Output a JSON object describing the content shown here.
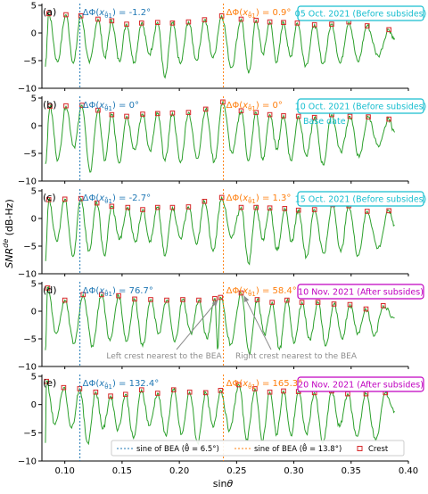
{
  "figure": {
    "ylabel": "SNR^de (dB-Hz)",
    "xlabel": "sinθ",
    "colors": {
      "signal": "#2ca02c",
      "bea1": "#1f77b4",
      "bea2": "#ff7f0e",
      "crest": "#d62728",
      "teal_box": "#17becf",
      "magenta_box": "#c000c0",
      "grey": "#8c8c8c"
    },
    "legend": [
      {
        "label": "sine of BEA (θ̂ = 6.5°)",
        "type": "dashed-line",
        "color": "#1f77b4"
      },
      {
        "label": "sine of BEA (θ̂ = 13.8°)",
        "type": "dashed-line",
        "color": "#ff7f0e"
      },
      {
        "label": "Crest",
        "type": "square-marker",
        "color": "#d62728"
      }
    ],
    "arrows": {
      "left": "Left crest nearest to the BEA",
      "right": "Right crest nearest to the BEA"
    }
  },
  "chart_data": [
    {
      "type": "line",
      "panel": "(a)",
      "title": "05 Oct. 2021 (Before subsides)",
      "box_color": "teal",
      "delta1": "ΔΦ(x_θ̂1) = -1.2°",
      "delta2": "ΔΦ(x_θ̂1) = 0.9°",
      "xlim": [
        0.08,
        0.4
      ],
      "ylim": [
        -10,
        5
      ],
      "yticks": [
        -10,
        -5,
        0,
        5
      ],
      "vlines": [
        0.1132,
        0.2385
      ],
      "crests": [
        [
          0.086,
          3.5
        ],
        [
          0.101,
          3.3
        ],
        [
          0.114,
          3.1
        ],
        [
          0.129,
          2.5
        ],
        [
          0.141,
          2.2
        ],
        [
          0.154,
          1.6
        ],
        [
          0.167,
          1.8
        ],
        [
          0.181,
          1.9
        ],
        [
          0.194,
          1.8
        ],
        [
          0.208,
          2.0
        ],
        [
          0.222,
          2.4
        ],
        [
          0.237,
          3.1
        ],
        [
          0.254,
          2.5
        ],
        [
          0.267,
          2.3
        ],
        [
          0.279,
          2.0
        ],
        [
          0.291,
          1.9
        ],
        [
          0.303,
          1.8
        ],
        [
          0.318,
          1.5
        ],
        [
          0.333,
          1.6
        ],
        [
          0.348,
          2.0
        ],
        [
          0.364,
          1.3
        ],
        [
          0.383,
          0.6
        ]
      ]
    },
    {
      "type": "line",
      "panel": "(b)",
      "title": "10 Oct. 2021 (Before subsides)",
      "title2": "Base date",
      "box_color": "teal",
      "delta1": "ΔΦ(x_θ̂1) = 0°",
      "delta2": "ΔΦ(x_θ̂1) = 0°",
      "xlim": [
        0.08,
        0.4
      ],
      "ylim": [
        -10,
        5
      ],
      "yticks": [
        -10,
        -5,
        0,
        5
      ],
      "vlines": [
        0.1132,
        0.2385
      ],
      "crests": [
        [
          0.087,
          3.5
        ],
        [
          0.101,
          3.6
        ],
        [
          0.115,
          3.7
        ],
        [
          0.129,
          2.8
        ],
        [
          0.141,
          2.0
        ],
        [
          0.154,
          1.7
        ],
        [
          0.168,
          2.1
        ],
        [
          0.181,
          2.2
        ],
        [
          0.194,
          2.3
        ],
        [
          0.208,
          2.4
        ],
        [
          0.223,
          3.0
        ],
        [
          0.238,
          4.3
        ],
        [
          0.254,
          2.7
        ],
        [
          0.267,
          2.4
        ],
        [
          0.279,
          2.0
        ],
        [
          0.291,
          1.8
        ],
        [
          0.304,
          1.7
        ],
        [
          0.318,
          1.5
        ],
        [
          0.333,
          2.0
        ],
        [
          0.349,
          1.7
        ],
        [
          0.365,
          1.6
        ],
        [
          0.383,
          1.2
        ]
      ]
    },
    {
      "type": "line",
      "panel": "(c)",
      "title": "15 Oct. 2021 (Before subsides)",
      "box_color": "teal",
      "delta1": "ΔΦ(x_θ̂1) = -2.7°",
      "delta2": "ΔΦ(x_θ̂1) = 1.3°",
      "xlim": [
        0.08,
        0.4
      ],
      "ylim": [
        -10,
        5
      ],
      "yticks": [
        -10,
        -5,
        0,
        5
      ],
      "vlines": [
        0.1132,
        0.2385
      ],
      "crests": [
        [
          0.086,
          3.4
        ],
        [
          0.1,
          3.5
        ],
        [
          0.114,
          3.6
        ],
        [
          0.128,
          2.8
        ],
        [
          0.141,
          2.2
        ],
        [
          0.155,
          2.0
        ],
        [
          0.168,
          1.6
        ],
        [
          0.181,
          2.0
        ],
        [
          0.194,
          2.0
        ],
        [
          0.208,
          2.1
        ],
        [
          0.222,
          3.1
        ],
        [
          0.237,
          3.8
        ],
        [
          0.254,
          2.0
        ],
        [
          0.267,
          2.0
        ],
        [
          0.279,
          1.9
        ],
        [
          0.292,
          1.8
        ],
        [
          0.304,
          1.5
        ],
        [
          0.318,
          1.6
        ],
        [
          0.334,
          2.5
        ],
        [
          0.348,
          2.3
        ],
        [
          0.364,
          1.3
        ],
        [
          0.383,
          1.4
        ]
      ]
    },
    {
      "type": "line",
      "panel": "(d)",
      "title": "10 Nov. 2021 (After subsides)",
      "box_color": "magenta",
      "delta1": "ΔΦ(x_θ̂1) = 76.7°",
      "delta2": "ΔΦ(x_θ̂1) = 58.4°",
      "xlim": [
        0.08,
        0.4
      ],
      "ylim": [
        -10,
        5
      ],
      "yticks": [
        -10,
        -5,
        0,
        5
      ],
      "vlines": [
        0.1132,
        0.2385
      ],
      "crests": [
        [
          0.085,
          4.2
        ],
        [
          0.1,
          2.0
        ],
        [
          0.116,
          3.0
        ],
        [
          0.132,
          3.0
        ],
        [
          0.147,
          2.8
        ],
        [
          0.161,
          2.2
        ],
        [
          0.175,
          2.1
        ],
        [
          0.189,
          2.0
        ],
        [
          0.203,
          2.1
        ],
        [
          0.217,
          2.0
        ],
        [
          0.231,
          2.3
        ],
        [
          0.236,
          2.5
        ],
        [
          0.254,
          3.3
        ],
        [
          0.268,
          2.1
        ],
        [
          0.281,
          1.6
        ],
        [
          0.294,
          2.0
        ],
        [
          0.307,
          1.6
        ],
        [
          0.321,
          1.6
        ],
        [
          0.335,
          1.3
        ],
        [
          0.349,
          1.2
        ],
        [
          0.363,
          0.4
        ],
        [
          0.378,
          1.0
        ]
      ]
    },
    {
      "type": "line",
      "panel": "(e)",
      "title": "20 Nov. 2021 (After subsides)",
      "box_color": "magenta",
      "delta1": "ΔΦ(x_θ̂1) = 132.4°",
      "delta2": "ΔΦ(x_θ̂1) = 165.3°",
      "xlim": [
        0.08,
        0.4
      ],
      "ylim": [
        -10,
        5
      ],
      "yticks": [
        -10,
        -5,
        0,
        5
      ],
      "xticks": [
        0.1,
        0.15,
        0.2,
        0.25,
        0.3,
        0.35,
        0.4
      ],
      "vlines": [
        0.1132,
        0.2385
      ],
      "crests": [
        [
          0.084,
          4.1
        ],
        [
          0.099,
          3.0
        ],
        [
          0.113,
          2.8
        ],
        [
          0.127,
          2.2
        ],
        [
          0.14,
          1.5
        ],
        [
          0.153,
          1.8
        ],
        [
          0.167,
          2.6
        ],
        [
          0.181,
          2.0
        ],
        [
          0.195,
          2.6
        ],
        [
          0.209,
          2.2
        ],
        [
          0.223,
          2.1
        ],
        [
          0.236,
          2.5
        ],
        [
          0.252,
          3.5
        ],
        [
          0.266,
          2.8
        ],
        [
          0.279,
          2.2
        ],
        [
          0.291,
          2.4
        ],
        [
          0.304,
          2.3
        ],
        [
          0.318,
          2.1
        ],
        [
          0.333,
          2.4
        ],
        [
          0.347,
          1.9
        ],
        [
          0.363,
          1.9
        ],
        [
          0.38,
          2.1
        ]
      ]
    }
  ]
}
